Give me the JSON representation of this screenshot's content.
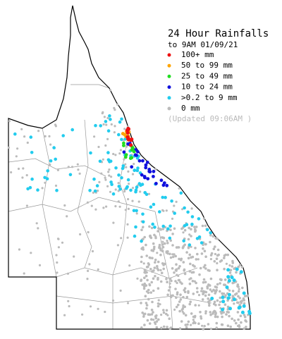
{
  "title": "24 Hour Rainfalls",
  "subtitle": "to 9AM 01/09/21",
  "legend": [
    {
      "label": "100+ mm",
      "color": "#ee1111"
    },
    {
      "label": "50  to 99 mm",
      "color": "#ffa500"
    },
    {
      "label": "25  to 49 mm",
      "color": "#22dd22"
    },
    {
      "label": "10  to 24 mm",
      "color": "#1111dd"
    },
    {
      "label": ">0.2 to 9 mm",
      "color": "#22ccee"
    },
    {
      "label": "0 mm",
      "color": "#bbbbbb"
    }
  ],
  "updated": "(Updated 09:06AM  )"
}
